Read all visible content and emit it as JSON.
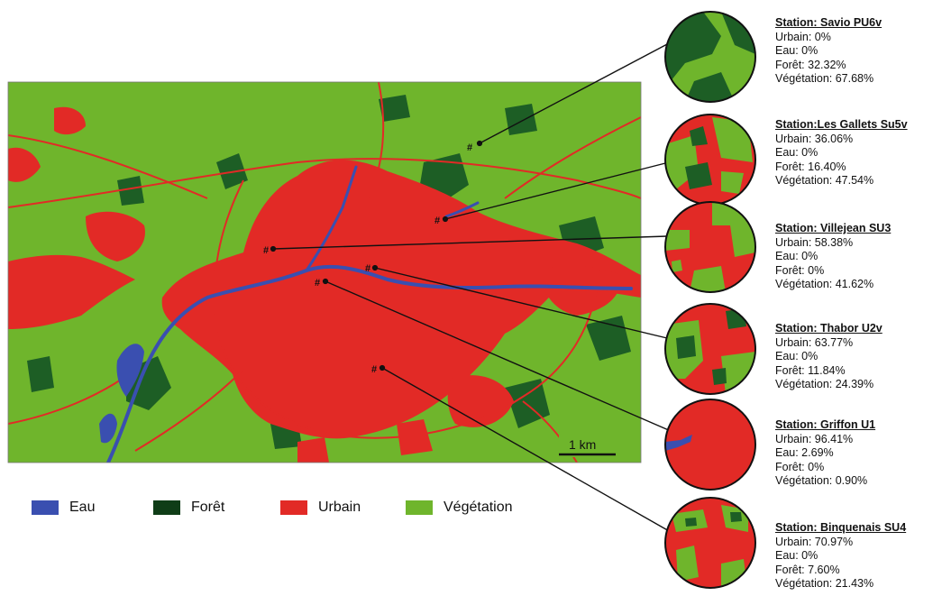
{
  "colors": {
    "eau": "#3a4fb0",
    "foret": "#1d5e25",
    "urbain": "#e22a26",
    "vegetation": "#6fb52c"
  },
  "scale_bar": {
    "label": "1 km"
  },
  "legend": [
    {
      "key": "eau",
      "label": "Eau"
    },
    {
      "key": "foret",
      "label": "Forêt"
    },
    {
      "key": "urbain",
      "label": "Urbain"
    },
    {
      "key": "vegetation",
      "label": "Végétation"
    }
  ],
  "station_marker": "#",
  "stations": [
    {
      "title": "Station: Savio PU6v",
      "urbain": "Urbain: 0%",
      "eau": "Eau: 0%",
      "foret": "Forêt: 32.32%",
      "vegetation": "Végétation: 67.68%"
    },
    {
      "title": "Station:Les Gallets Su5v",
      "urbain": "Urbain: 36.06%",
      "eau": "Eau: 0%",
      "foret": "Forêt: 16.40%",
      "vegetation": "Végétation: 47.54%"
    },
    {
      "title": "Station: Villejean SU3",
      "urbain": "Urbain: 58.38%",
      "eau": "Eau: 0%",
      "foret": "Forêt: 0%",
      "vegetation": "Végétation: 41.62%"
    },
    {
      "title": "Station: Thabor U2v",
      "urbain": "Urbain: 63.77%",
      "eau": "Eau: 0%",
      "foret": "Forêt: 11.84%",
      "vegetation": "Végétation: 24.39%"
    },
    {
      "title": "Station: Griffon U1",
      "urbain": "Urbain: 96.41%",
      "eau": "Eau: 2.69%",
      "foret": "Forêt: 0%",
      "vegetation": "Végétation: 0.90%"
    },
    {
      "title": "Station: Binquenais SU4",
      "urbain": "Urbain: 70.97%",
      "eau": "Eau: 0%",
      "foret": "Forêt: 7.60%",
      "vegetation": "Végétation: 21.43%"
    }
  ]
}
